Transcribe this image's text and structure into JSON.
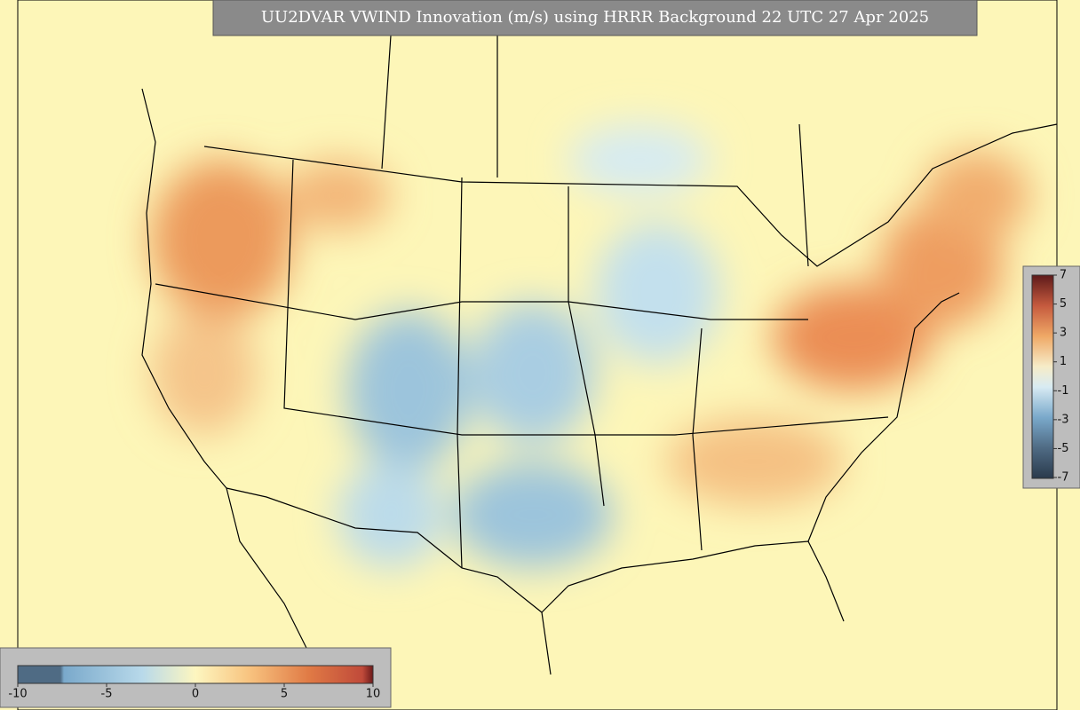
{
  "title": "UU2DVAR VWIND Innovation (m/s) using HRRR Background 22 UTC 27 Apr 2025",
  "colorbars": [
    {
      "orientation": "vertical",
      "ticks": [
        7,
        5,
        3,
        1,
        -1,
        -3,
        -5,
        -7
      ]
    },
    {
      "orientation": "horizontal",
      "ticks": [
        -10,
        -5,
        0,
        5,
        10
      ]
    }
  ]
}
